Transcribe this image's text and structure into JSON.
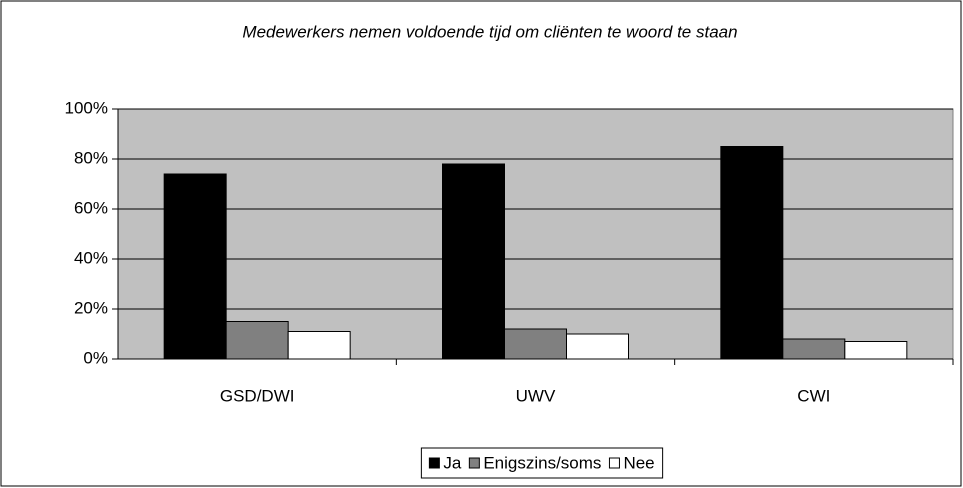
{
  "chart_data": {
    "type": "bar",
    "title": "Medewerkers nemen voldoende tijd om cliënten te woord te staan",
    "categories": [
      "GSD/DWI",
      "UWV",
      "CWI"
    ],
    "series": [
      {
        "name": "Ja",
        "color": "#000000",
        "values": [
          74,
          78,
          85
        ]
      },
      {
        "name": "Enigszins/soms",
        "color": "#808080",
        "values": [
          15,
          12,
          8
        ]
      },
      {
        "name": "Nee",
        "color": "#ffffff",
        "values": [
          11,
          10,
          7
        ]
      }
    ],
    "ylim": [
      0,
      100
    ],
    "yticks": [
      {
        "value": 0,
        "label": "0%"
      },
      {
        "value": 20,
        "label": "20%"
      },
      {
        "value": 40,
        "label": "40%"
      },
      {
        "value": 60,
        "label": "60%"
      },
      {
        "value": 80,
        "label": "80%"
      },
      {
        "value": 100,
        "label": "100%"
      }
    ],
    "grid": true,
    "plot_background": "#c0c0c0",
    "legend": "bottom"
  }
}
